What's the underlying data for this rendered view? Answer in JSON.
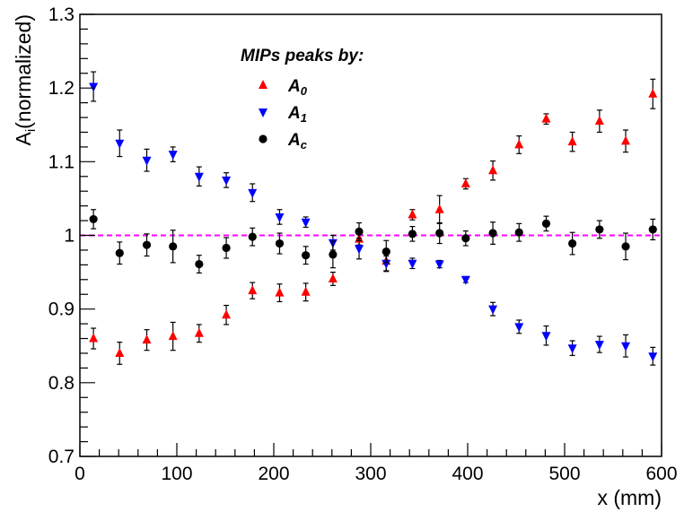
{
  "chart_data": {
    "type": "scatter",
    "xlabel": "x (mm)",
    "ylabel_main": "A",
    "ylabel_sub": "i",
    "ylabel_rest": "(normalized)",
    "xlim": [
      0,
      600
    ],
    "ylim": [
      0.7,
      1.3
    ],
    "x_ticks": [
      "0",
      "100",
      "200",
      "300",
      "400",
      "500",
      "600"
    ],
    "y_ticks": [
      "0.7",
      "0.8",
      "0.9",
      "1",
      "1.1",
      "1.2",
      "1.3"
    ],
    "reference_line": {
      "y": 1.0,
      "color": "#ff00ff",
      "style": "dashed"
    },
    "legend": {
      "title": "MIPs peaks by:",
      "entries": [
        {
          "main": "A",
          "sub": "0",
          "series": "A0"
        },
        {
          "main": "A",
          "sub": "1",
          "series": "A1"
        },
        {
          "main": "A",
          "sub": "c",
          "series": "Ac"
        }
      ]
    },
    "series": [
      {
        "id": "A0",
        "marker": "triangle-up",
        "color": "#ff0000",
        "x": [
          14,
          41,
          69,
          96,
          123,
          151,
          178,
          206,
          233,
          261,
          288,
          316,
          343,
          371,
          398,
          426,
          453,
          481,
          508,
          536,
          563,
          591
        ],
        "y": [
          0.86,
          0.84,
          0.858,
          0.863,
          0.867,
          0.892,
          0.925,
          0.922,
          0.923,
          0.941,
          0.995,
          0.965,
          1.028,
          1.035,
          1.07,
          1.088,
          1.123,
          1.158,
          1.127,
          1.155,
          1.128,
          1.192
        ],
        "err": [
          0.014,
          0.015,
          0.014,
          0.019,
          0.012,
          0.013,
          0.011,
          0.012,
          0.012,
          0.009,
          0.008,
          0.014,
          0.007,
          0.019,
          0.007,
          0.013,
          0.012,
          0.007,
          0.013,
          0.015,
          0.015,
          0.02
        ]
      },
      {
        "id": "A1",
        "marker": "triangle-down",
        "color": "#0000ff",
        "x": [
          14,
          41,
          69,
          96,
          123,
          151,
          178,
          206,
          233,
          261,
          288,
          316,
          343,
          371,
          398,
          426,
          453,
          481,
          508,
          536,
          563,
          591
        ],
        "y": [
          1.202,
          1.125,
          1.102,
          1.11,
          1.08,
          1.075,
          1.058,
          1.025,
          1.018,
          0.99,
          0.982,
          0.962,
          0.962,
          0.961,
          0.94,
          0.9,
          0.876,
          0.864,
          0.847,
          0.852,
          0.85,
          0.836
        ],
        "err": [
          0.02,
          0.018,
          0.015,
          0.01,
          0.013,
          0.01,
          0.012,
          0.01,
          0.007,
          0.01,
          0.014,
          0.01,
          0.007,
          0.005,
          0.004,
          0.009,
          0.009,
          0.013,
          0.01,
          0.011,
          0.015,
          0.012
        ]
      },
      {
        "id": "Ac",
        "marker": "circle",
        "color": "#000000",
        "x": [
          14,
          41,
          69,
          96,
          123,
          151,
          178,
          206,
          233,
          261,
          288,
          316,
          343,
          371,
          398,
          426,
          453,
          481,
          508,
          536,
          563,
          591
        ],
        "y": [
          1.022,
          0.976,
          0.987,
          0.985,
          0.961,
          0.983,
          0.998,
          0.989,
          0.973,
          0.974,
          1.005,
          0.978,
          1.002,
          1.003,
          0.996,
          1.003,
          1.004,
          1.016,
          0.989,
          1.008,
          0.985,
          1.008
        ],
        "err": [
          0.013,
          0.015,
          0.015,
          0.022,
          0.012,
          0.014,
          0.012,
          0.014,
          0.012,
          0.018,
          0.012,
          0.015,
          0.01,
          0.014,
          0.01,
          0.015,
          0.012,
          0.01,
          0.015,
          0.012,
          0.018,
          0.014
        ]
      }
    ]
  }
}
